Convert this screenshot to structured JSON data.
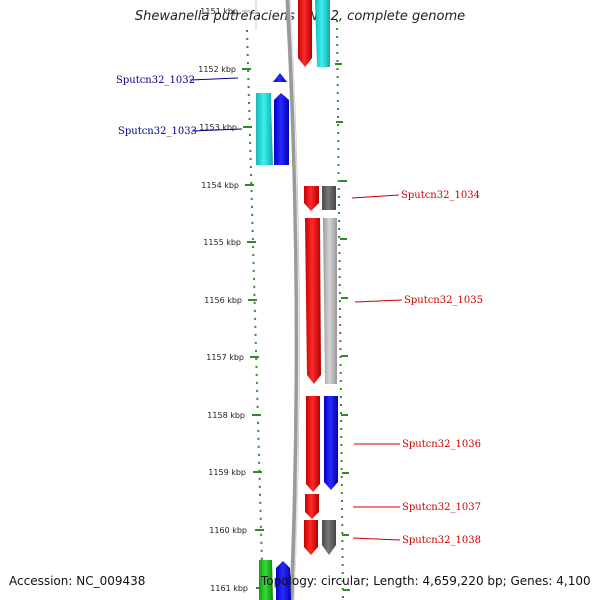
{
  "title": "Shewanella putrefaciens CN-32, complete genome",
  "footer": {
    "accession": "Accession: NC_009438",
    "summary": "Topology: circular; Length: 4,659,220 bp; Genes: 4,100"
  },
  "colors": {
    "backbone": "#9a9a9a",
    "scale_ticks": "#2e8b2e",
    "label_forward": "#00008b",
    "label_reverse": "#cc0000",
    "red": "#ff0000",
    "cyan": "#22d8d8",
    "blue": "#0000ff",
    "darkgray": "#666666",
    "lightgray": "#bdbdbd",
    "green": "#22bb22"
  },
  "scale": {
    "unit": "kbp",
    "tick_labels": [
      "1151 kbp",
      "1152 kbp",
      "1153 kbp",
      "1154 kbp",
      "1155 kbp",
      "1156 kbp",
      "1157 kbp",
      "1158 kbp",
      "1159 kbp",
      "1160 kbp",
      "1161 kbp"
    ]
  },
  "genes": [
    {
      "label": "Sputcn32_1032",
      "strand": "forward"
    },
    {
      "label": "Sputcn32_1033",
      "strand": "forward"
    },
    {
      "label": "Sputcn32_1034",
      "strand": "reverse"
    },
    {
      "label": "Sputcn32_1035",
      "strand": "reverse"
    },
    {
      "label": "Sputcn32_1036",
      "strand": "reverse"
    },
    {
      "label": "Sputcn32_1037",
      "strand": "reverse"
    },
    {
      "label": "Sputcn32_1038",
      "strand": "reverse"
    }
  ]
}
